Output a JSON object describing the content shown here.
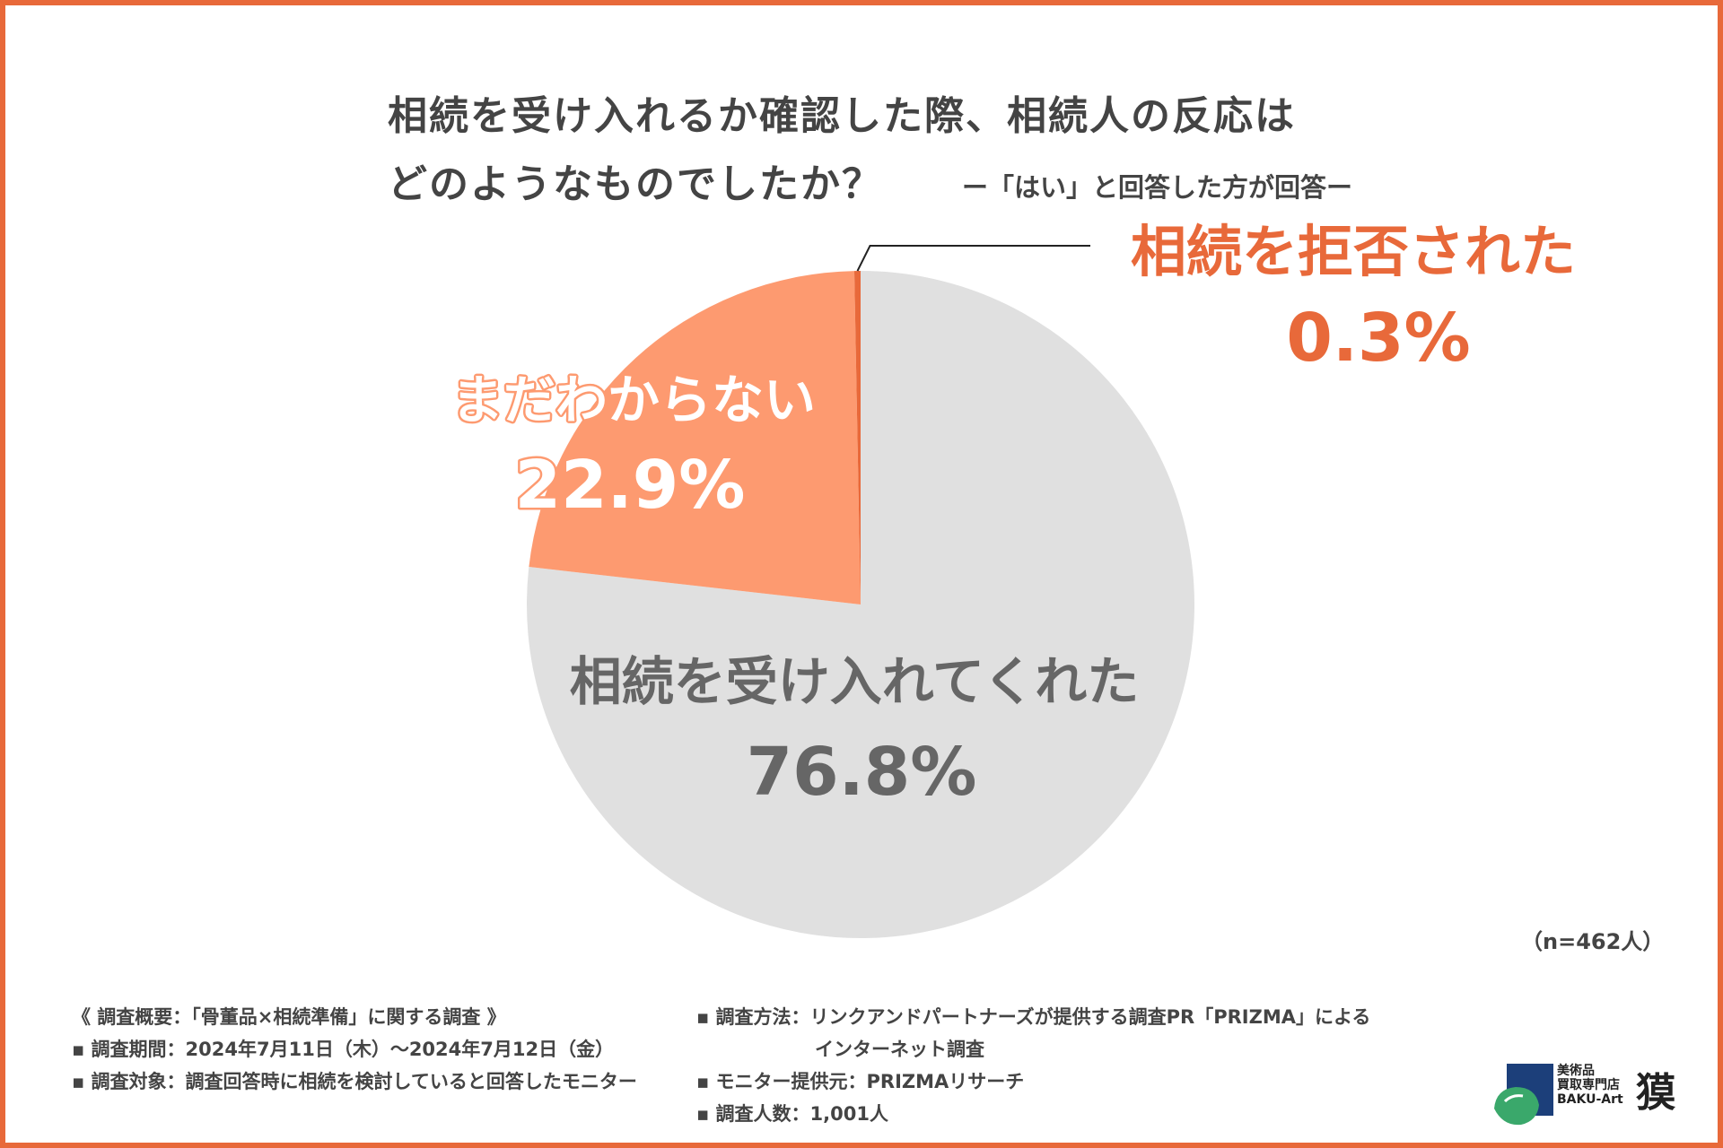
{
  "title": {
    "line1": "相続を受け入れるか確認した際、相続人の反応は",
    "line2": "どのようなものでしたか？"
  },
  "subtitle": "ー「はい」と回答した方が回答ー",
  "chart_data": {
    "type": "pie",
    "slices": [
      {
        "label": "相続を受け入れてくれた",
        "value": 76.8,
        "display": "76.8%",
        "color": "#e0e0e0",
        "text_color": "#666666"
      },
      {
        "label": "まだわからない",
        "value": 22.9,
        "display": "22.9%",
        "color": "#fd9a70",
        "text_color": "#ffffff"
      },
      {
        "label": "相続を拒否された",
        "value": 0.3,
        "display": "0.3%",
        "color": "#e8693a",
        "text_color": "#e8693a"
      }
    ],
    "start": "12 o'clock, counterclockwise",
    "legend": "none"
  },
  "n_label": "（n=462人）",
  "notes": {
    "left": [
      "《 調査概要：「骨董品×相続準備」に関する調査 》",
      "▪ 調査期間：2024年7月11日（木）〜2024年7月12日（金）",
      "▪ 調査対象：調査回答時に相続を検討していると回答したモニター"
    ],
    "right": [
      "▪ 調査方法：リンクアンドパートナーズが提供する調査PR「PRIZMA」による",
      "インターネット調査",
      "▪ モニター提供元：PRIZMAリサーチ",
      "▪ 調査人数：1,001人"
    ]
  },
  "logo": {
    "line1": "美術品",
    "line2": "買取専門店",
    "line3": "BAKU-Art",
    "kanji": "獏"
  },
  "colors": {
    "accent": "#e8693a",
    "light_accent": "#fd9a70",
    "grey": "#e0e0e0"
  }
}
